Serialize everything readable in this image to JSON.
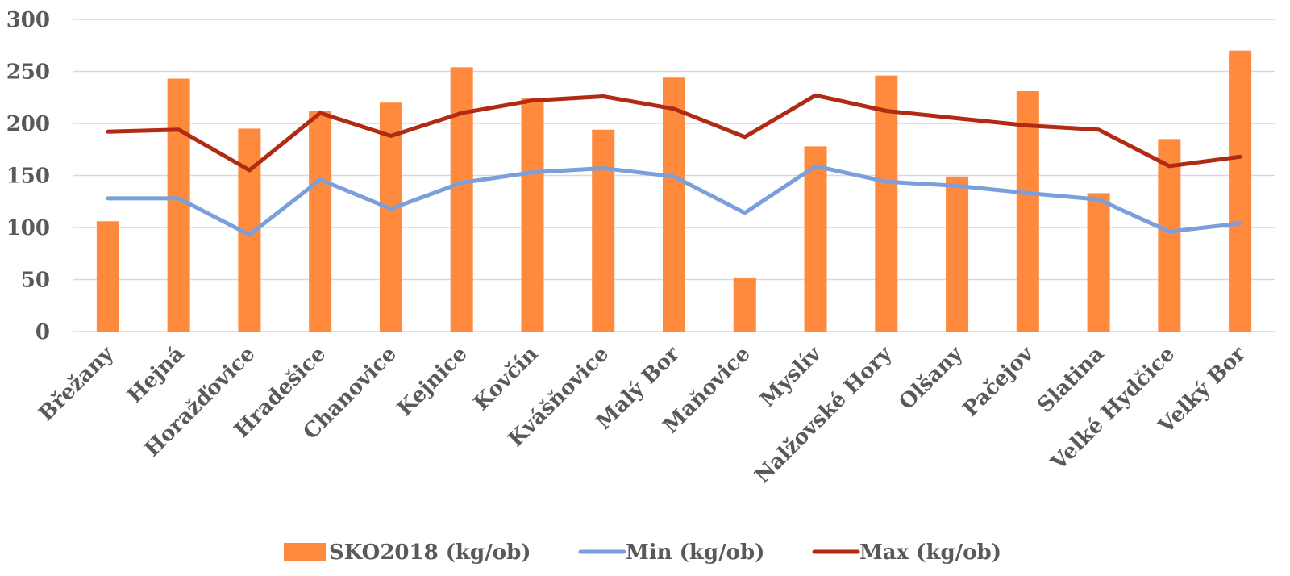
{
  "chart_data": {
    "type": "bar",
    "categories": [
      "Břežany",
      "Hejná",
      "Horažďovice",
      "Hradešice",
      "Chanovice",
      "Kejnice",
      "Kovčín",
      "Kvášňovice",
      "Malý Bor",
      "Maňovice",
      "Myslív",
      "Nalžovské Hory",
      "Olšany",
      "Pačejov",
      "Slatina",
      "Velké Hydčice",
      "Velký Bor"
    ],
    "series": [
      {
        "name": "SKO2018 (kg/ob)",
        "type": "bar",
        "color": "#ff8a3d",
        "values": [
          106,
          243,
          195,
          212,
          220,
          254,
          224,
          194,
          244,
          52,
          178,
          246,
          149,
          231,
          133,
          185,
          270
        ]
      },
      {
        "name": "Min (kg/ob)",
        "type": "line",
        "color": "#7b9fdc",
        "values": [
          128,
          128,
          93,
          146,
          118,
          143,
          153,
          157,
          149,
          114,
          159,
          144,
          140,
          133,
          127,
          96,
          104
        ]
      },
      {
        "name": "Max (kg/ob)",
        "type": "line",
        "color": "#b02a14",
        "values": [
          192,
          194,
          155,
          210,
          188,
          210,
          222,
          226,
          214,
          187,
          227,
          212,
          205,
          198,
          194,
          159,
          168
        ]
      }
    ],
    "yticks": [
      "0",
      "50",
      "100",
      "150",
      "200",
      "250",
      "300"
    ],
    "ylim": [
      0,
      300
    ],
    "grid": true,
    "legend_position": "bottom"
  }
}
